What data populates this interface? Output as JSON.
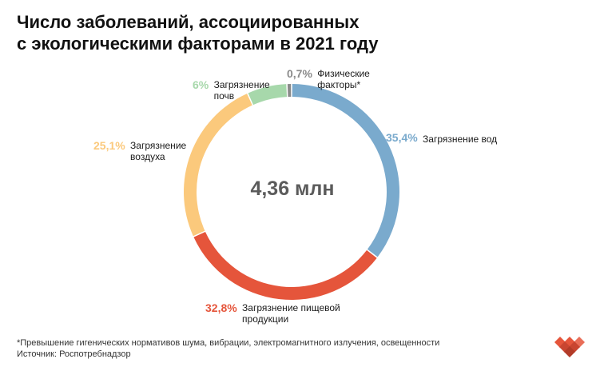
{
  "title_lines": [
    "Число заболеваний, ассоциированных",
    "с экологическими факторами в 2021 году"
  ],
  "center_total": "4,36 млн",
  "chart_data": {
    "type": "pie",
    "title": "Число заболеваний, ассоциированных с экологическими факторами в 2021 году",
    "total": "4,36 млн",
    "slices": [
      {
        "label": "Загрязнение вод",
        "value": 35.4,
        "value_label": "35,4%",
        "color": "#7aaacd"
      },
      {
        "label": "Загрязнение пищевой продукции",
        "value": 32.8,
        "value_label": "32,8%",
        "color": "#e5553b"
      },
      {
        "label": "Загрязнение воздуха",
        "value": 25.1,
        "value_label": "25,1%",
        "color": "#fbc97c"
      },
      {
        "label": "Загрязнение почв",
        "value": 6,
        "value_label": "6%",
        "color": "#a7d8ab"
      },
      {
        "label": "Физические факторы*",
        "value": 0.7,
        "value_label": "0,7%",
        "color": "#8a8a8a"
      }
    ]
  },
  "labels": {
    "water": {
      "pct": "35,4%",
      "line1": "Загрязнение вод"
    },
    "food": {
      "pct": "32,8%",
      "line1": "Загрязнение пищевой",
      "line2": "продукции"
    },
    "air": {
      "pct": "25,1%",
      "line1": "Загрязнение",
      "line2": "воздуха"
    },
    "soil": {
      "pct": "6%",
      "line1": "Загрязнение",
      "line2": "почв"
    },
    "physical": {
      "pct": "0,7%",
      "line1": "Физические",
      "line2": "факторы*"
    }
  },
  "footnote": "*Превышение гигенических нормативов шума, вибрации, электромагнитного излучения, освещенности",
  "source": "Источник: Роспотребнадзор"
}
